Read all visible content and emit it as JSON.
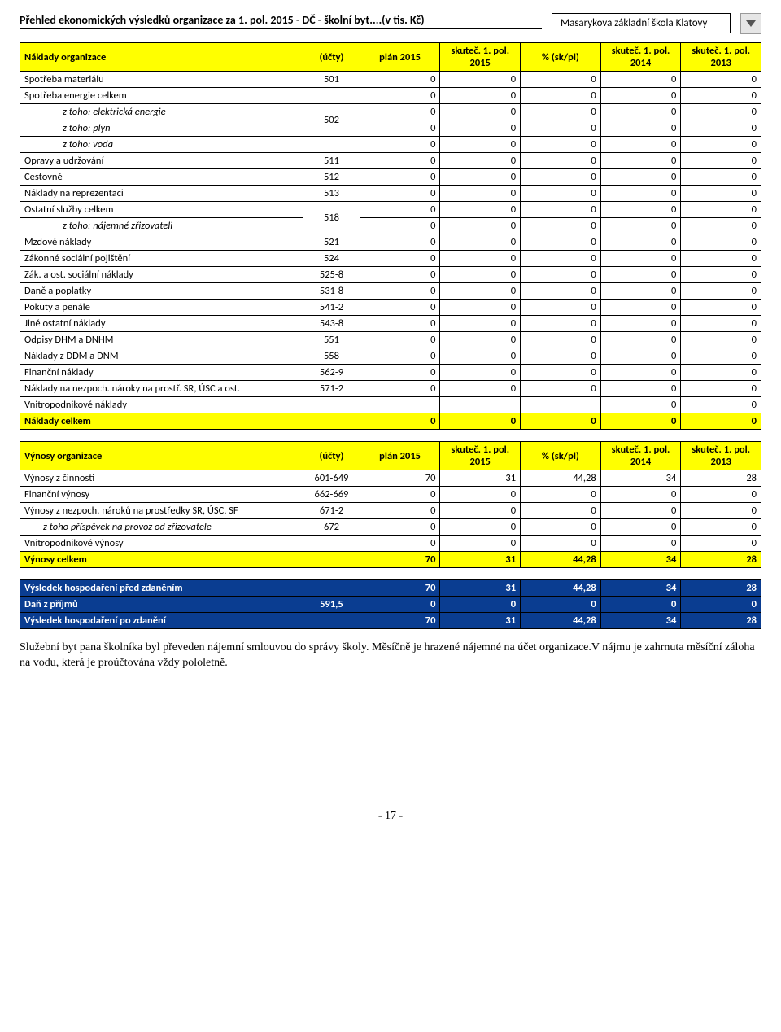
{
  "header": {
    "title": "Přehled ekonomických výsledků organizace za 1. pol. 2015 - DČ - školní byt....(v tis. Kč)",
    "school": "Masarykova základní škola Klatovy"
  },
  "columns": {
    "c0": "(účty)",
    "c1": "plán 2015",
    "c2": "skuteč. 1. pol. 2015",
    "c3": "% (sk/pl)",
    "c4": "skuteč. 1. pol. 2014",
    "c5": "skuteč. 1. pol. 2013"
  },
  "naklady": {
    "title": "Náklady organizace",
    "rows": [
      {
        "label": "Spotřeba materiálu",
        "acct": "501",
        "v": [
          "0",
          "0",
          "0",
          "0",
          "0"
        ]
      },
      {
        "label": "Spotřeba energie celkem",
        "acct": "",
        "v": [
          "0",
          "0",
          "0",
          "0",
          "0"
        ]
      },
      {
        "label": "z toho: elektrická energie",
        "acct": "502",
        "v": [
          "0",
          "0",
          "0",
          "0",
          "0"
        ],
        "italic": true,
        "indent": 2,
        "rowspan": 2
      },
      {
        "label": "z toho: plyn",
        "acct": "",
        "v": [
          "0",
          "0",
          "0",
          "0",
          "0"
        ],
        "italic": true,
        "indent": 2,
        "merged": true
      },
      {
        "label": "z toho: voda",
        "acct": "",
        "v": [
          "0",
          "0",
          "0",
          "0",
          "0"
        ],
        "italic": true,
        "indent": 2
      },
      {
        "label": "Opravy a udržování",
        "acct": "511",
        "v": [
          "0",
          "0",
          "0",
          "0",
          "0"
        ]
      },
      {
        "label": "Cestovné",
        "acct": "512",
        "v": [
          "0",
          "0",
          "0",
          "0",
          "0"
        ]
      },
      {
        "label": "Náklady na reprezentaci",
        "acct": "513",
        "v": [
          "0",
          "0",
          "0",
          "0",
          "0"
        ]
      },
      {
        "label": "Ostatní služby celkem",
        "acct": "518",
        "v": [
          "0",
          "0",
          "0",
          "0",
          "0"
        ],
        "rowspan": 2
      },
      {
        "label": "z toho: nájemné zřizovateli",
        "acct": "",
        "v": [
          "0",
          "0",
          "0",
          "0",
          "0"
        ],
        "italic": true,
        "indent": 2,
        "merged": true
      },
      {
        "label": "Mzdové náklady",
        "acct": "521",
        "v": [
          "0",
          "0",
          "0",
          "0",
          "0"
        ]
      },
      {
        "label": "Zákonné sociální pojištění",
        "acct": "524",
        "v": [
          "0",
          "0",
          "0",
          "0",
          "0"
        ]
      },
      {
        "label": "Zák. a ost. sociální náklady",
        "acct": "525-8",
        "v": [
          "0",
          "0",
          "0",
          "0",
          "0"
        ]
      },
      {
        "label": "Daně a poplatky",
        "acct": "531-8",
        "v": [
          "0",
          "0",
          "0",
          "0",
          "0"
        ]
      },
      {
        "label": "Pokuty a penále",
        "acct": "541-2",
        "v": [
          "0",
          "0",
          "0",
          "0",
          "0"
        ]
      },
      {
        "label": "Jiné ostatní náklady",
        "acct": "543-8",
        "v": [
          "0",
          "0",
          "0",
          "0",
          "0"
        ]
      },
      {
        "label": "Odpisy DHM a DNHM",
        "acct": "551",
        "v": [
          "0",
          "0",
          "0",
          "0",
          "0"
        ]
      },
      {
        "label": "Náklady z DDM a DNM",
        "acct": "558",
        "v": [
          "0",
          "0",
          "0",
          "0",
          "0"
        ]
      },
      {
        "label": "Finanční náklady",
        "acct": "562-9",
        "v": [
          "0",
          "0",
          "0",
          "0",
          "0"
        ]
      },
      {
        "label": "Náklady na nezpoch. nároky na prostř. SR, ÚSC a ost.",
        "acct": "571-2",
        "v": [
          "0",
          "0",
          "0",
          "0",
          "0"
        ]
      },
      {
        "label": "Vnitropodnikové náklady",
        "acct": "",
        "v": [
          "",
          "",
          "",
          "0",
          "0"
        ]
      }
    ],
    "total": {
      "label": "Náklady celkem",
      "v": [
        "",
        "0",
        "0",
        "0",
        "0",
        "0"
      ]
    }
  },
  "vynosy": {
    "title": "Výnosy organizace",
    "rows": [
      {
        "label": "Výnosy z činnosti",
        "acct": "601-649",
        "v": [
          "70",
          "31",
          "44,28",
          "34",
          "28"
        ]
      },
      {
        "label": "Finanční výnosy",
        "acct": "662-669",
        "v": [
          "0",
          "0",
          "0",
          "0",
          "0"
        ]
      },
      {
        "label": "Výnosy z nezpoch. nároků na prostředky SR, ÚSC, SF",
        "acct": "671-2",
        "v": [
          "0",
          "0",
          "0",
          "0",
          "0"
        ]
      },
      {
        "label": "z toho příspěvek na provoz od zřizovatele",
        "acct": "672",
        "v": [
          "0",
          "0",
          "0",
          "0",
          "0"
        ],
        "italic": true,
        "indent": 1
      },
      {
        "label": "Vnitropodnikové výnosy",
        "acct": "",
        "v": [
          "0",
          "0",
          "0",
          "0",
          "0"
        ]
      }
    ],
    "total": {
      "label": "Výnosy celkem",
      "v": [
        "",
        "70",
        "31",
        "44,28",
        "34",
        "28"
      ]
    }
  },
  "vysledek": {
    "rows": [
      {
        "label": "Výsledek hospodaření před zdaněním",
        "acct": "",
        "v": [
          "70",
          "31",
          "44,28",
          "34",
          "28"
        ],
        "cls": "row-blue"
      },
      {
        "label": "Daň z příjmů",
        "acct": "591,5",
        "v": [
          "0",
          "0",
          "0",
          "0",
          "0"
        ],
        "cls": "row-blue"
      },
      {
        "label": "Výsledek hospodaření po zdanění",
        "acct": "",
        "v": [
          "70",
          "31",
          "44,28",
          "34",
          "28"
        ],
        "cls": "row-blue"
      }
    ]
  },
  "footnote": "Služební byt pana školníka byl převeden nájemní smlouvou do správy školy. Měsíčně je hrazené nájemné na účet organizace.V nájmu je zahrnuta měsíční záloha na vodu, která je proúčtována vždy pololetně.",
  "page": "- 17 -",
  "colors": {
    "yellow": "#ffff00",
    "blue": "#0a3d91",
    "white": "#ffffff",
    "border": "#000000"
  }
}
